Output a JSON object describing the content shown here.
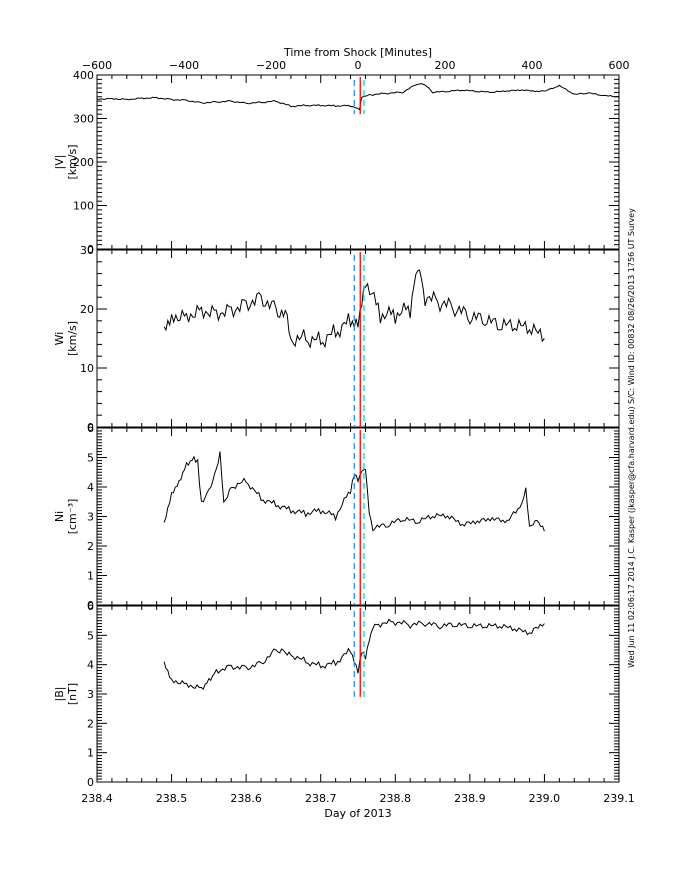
{
  "top_axis": {
    "title": "Time from Shock [Minutes]",
    "ticks": [
      "-600",
      "-400",
      "-200",
      "0",
      "200",
      "400",
      "600"
    ],
    "range": [
      -600,
      600
    ]
  },
  "bottom_axis": {
    "title": "Day of 2013",
    "ticks": [
      "238.4",
      "238.5",
      "238.6",
      "238.7",
      "238.8",
      "238.9",
      "239.0",
      "239.1"
    ],
    "range": [
      238.4,
      239.1
    ]
  },
  "side_annotation": "Wed Jun 11 02:06:17 2014  J.C. Kasper (jkasper@cfa.harvard.edu)  S/C: Wind ID: 00832 08/26/2013  1756 UT Survey",
  "markers": {
    "shock_day": 238.753,
    "upstream_day": 238.745,
    "downstream_day": 238.758,
    "colors": {
      "shock": "#ff0000",
      "upstream": "#1e90ff",
      "downstream": "#00e0c0"
    }
  },
  "chart_data": [
    {
      "type": "line",
      "title": "",
      "ylabel": "|V| [km/s]",
      "ylabel_top": "|V|",
      "ylabel_bottom": "[km/s]",
      "ylim": [
        0,
        400
      ],
      "yticks": [
        "0",
        "100",
        "200",
        "300",
        "400"
      ],
      "x": [
        238.4,
        238.42,
        238.44,
        238.46,
        238.48,
        238.5,
        238.52,
        238.54,
        238.56,
        238.58,
        238.6,
        238.62,
        238.64,
        238.66,
        238.68,
        238.7,
        238.72,
        238.74,
        238.752,
        238.755,
        238.77,
        238.79,
        238.81,
        238.83,
        238.84,
        238.85,
        238.87,
        238.89,
        238.91,
        238.93,
        238.95,
        238.97,
        238.99,
        239.0,
        239.02,
        239.04,
        239.06,
        239.08,
        239.1
      ],
      "values": [
        345,
        346,
        344,
        347,
        348,
        344,
        342,
        336,
        338,
        340,
        335,
        337,
        340,
        328,
        330,
        330,
        329,
        329,
        322,
        350,
        355,
        358,
        360,
        380,
        378,
        360,
        362,
        365,
        362,
        360,
        363,
        365,
        362,
        362,
        375,
        355,
        358,
        352,
        350
      ]
    },
    {
      "type": "line",
      "ylabel": "W_i [km/s]",
      "ylabel_top": "W",
      "ylabel_sub": "i",
      "ylabel_bottom": "[km/s]",
      "ylim": [
        0,
        30
      ],
      "yticks": [
        "0",
        "10",
        "20",
        "30"
      ],
      "x": [
        238.49,
        238.5,
        238.52,
        238.54,
        238.56,
        238.58,
        238.6,
        238.62,
        238.64,
        238.655,
        238.66,
        238.68,
        238.7,
        238.72,
        238.74,
        238.75,
        238.76,
        238.78,
        238.8,
        238.82,
        238.83,
        238.84,
        238.86,
        238.88,
        238.9,
        238.92,
        238.94,
        238.96,
        238.98,
        239.0
      ],
      "values": [
        17,
        19,
        19,
        20,
        19.5,
        20,
        21,
        22,
        20,
        19,
        15,
        15,
        14.5,
        16,
        18,
        18,
        25,
        19,
        19,
        20,
        28,
        22,
        21,
        20,
        18.5,
        18,
        17,
        17,
        16.5,
        15
      ]
    },
    {
      "type": "line",
      "ylabel": "N_i [cm^-3]",
      "ylabel_top": "N",
      "ylabel_sub": "i",
      "ylabel_bottom": "[cm⁻³]",
      "ylim": [
        0,
        6
      ],
      "yticks": [
        "0",
        "1",
        "2",
        "3",
        "4",
        "5",
        "6"
      ],
      "x": [
        238.49,
        238.5,
        238.51,
        238.52,
        238.53,
        238.535,
        238.54,
        238.55,
        238.56,
        238.565,
        238.57,
        238.58,
        238.6,
        238.62,
        238.64,
        238.66,
        238.68,
        238.7,
        238.72,
        238.74,
        238.745,
        238.75,
        238.76,
        238.765,
        238.77,
        238.79,
        238.81,
        238.83,
        238.85,
        238.87,
        238.89,
        238.91,
        238.93,
        238.95,
        238.97,
        238.975,
        238.98,
        238.99,
        239.0
      ],
      "values": [
        2.8,
        3.8,
        4.2,
        4.8,
        5.0,
        4.9,
        3.5,
        3.9,
        4.6,
        5.2,
        3.5,
        4.0,
        4.2,
        3.6,
        3.4,
        3.2,
        3.1,
        3.2,
        3.0,
        3.9,
        4.5,
        4.3,
        4.7,
        3.2,
        2.6,
        2.7,
        2.9,
        2.8,
        3.0,
        3.0,
        2.7,
        2.8,
        2.9,
        2.8,
        3.4,
        3.9,
        2.6,
        2.8,
        2.5
      ]
    },
    {
      "type": "line",
      "ylabel": "|B| [nT]",
      "ylabel_top": "|B|",
      "ylabel_bottom": "[nT]",
      "ylim": [
        0,
        6
      ],
      "yticks": [
        "0",
        "1",
        "2",
        "3",
        "4",
        "5",
        "6"
      ],
      "x": [
        238.49,
        238.5,
        238.52,
        238.54,
        238.55,
        238.56,
        238.58,
        238.6,
        238.62,
        238.64,
        238.65,
        238.66,
        238.68,
        238.7,
        238.72,
        238.74,
        238.75,
        238.755,
        238.76,
        238.77,
        238.78,
        238.8,
        238.82,
        238.84,
        238.86,
        238.88,
        238.9,
        238.92,
        238.94,
        238.96,
        238.98,
        239.0
      ],
      "values": [
        4.1,
        3.5,
        3.35,
        3.2,
        3.5,
        3.8,
        3.95,
        3.9,
        4.05,
        4.5,
        4.5,
        4.35,
        4.1,
        3.95,
        4.05,
        4.5,
        3.8,
        4.5,
        4.3,
        5.35,
        5.4,
        5.45,
        5.35,
        5.4,
        5.3,
        5.35,
        5.3,
        5.3,
        5.3,
        5.2,
        5.05,
        5.4
      ]
    }
  ]
}
